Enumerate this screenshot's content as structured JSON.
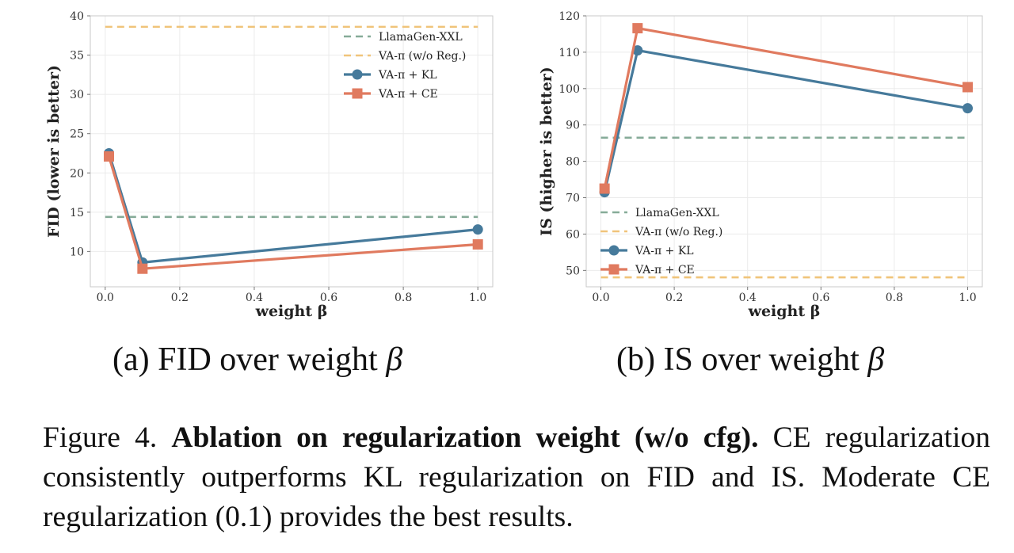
{
  "chart_data": [
    {
      "type": "line",
      "panel": "a",
      "xlabel": "weight β",
      "ylabel": "FID (lower is better)",
      "xlim": [
        -0.04,
        1.04
      ],
      "ylim": [
        5.5,
        40
      ],
      "xticks": [
        0.0,
        0.2,
        0.4,
        0.6,
        0.8,
        1.0
      ],
      "xtick_labels": [
        "0.0",
        "0.2",
        "0.4",
        "0.6",
        "0.8",
        "1.0"
      ],
      "yticks": [
        10,
        15,
        20,
        25,
        30,
        35,
        40
      ],
      "ytick_labels": [
        "10",
        "15",
        "20",
        "25",
        "30",
        "35",
        "40"
      ],
      "grid": true,
      "legend_position": "top-right",
      "x": [
        0.01,
        0.1,
        1.0
      ],
      "series": [
        {
          "name": "LlamaGen-XXL",
          "style": "dashed",
          "color": "#86ab98",
          "hline": 14.4
        },
        {
          "name": "VA-π (w/o Reg.)",
          "style": "dashed",
          "color": "#f0c47a",
          "hline": 38.6
        },
        {
          "name": "VA-π + KL",
          "style": "line",
          "marker": "circle",
          "color": "#467a9b",
          "values": [
            22.5,
            8.6,
            12.8
          ]
        },
        {
          "name": "VA-π + CE",
          "style": "line",
          "marker": "square",
          "color": "#e07a5f",
          "values": [
            22.1,
            7.8,
            10.9
          ]
        }
      ]
    },
    {
      "type": "line",
      "panel": "b",
      "xlabel": "weight β",
      "ylabel": "IS (higher is better)",
      "xlim": [
        -0.04,
        1.04
      ],
      "ylim": [
        45.5,
        120
      ],
      "xticks": [
        0.0,
        0.2,
        0.4,
        0.6,
        0.8,
        1.0
      ],
      "xtick_labels": [
        "0.0",
        "0.2",
        "0.4",
        "0.6",
        "0.8",
        "1.0"
      ],
      "yticks": [
        50,
        60,
        70,
        80,
        90,
        100,
        110,
        120
      ],
      "ytick_labels": [
        "50",
        "60",
        "70",
        "80",
        "90",
        "100",
        "110",
        "120"
      ],
      "grid": true,
      "legend_position": "bottom-left",
      "x": [
        0.01,
        0.1,
        1.0
      ],
      "series": [
        {
          "name": "LlamaGen-XXL",
          "style": "dashed",
          "color": "#86ab98",
          "hline": 86.5
        },
        {
          "name": "VA-π (w/o Reg.)",
          "style": "dashed",
          "color": "#f0c47a",
          "hline": 48.1
        },
        {
          "name": "VA-π + KL",
          "style": "line",
          "marker": "circle",
          "color": "#467a9b",
          "values": [
            71.5,
            110.5,
            94.6
          ]
        },
        {
          "name": "VA-π + CE",
          "style": "line",
          "marker": "square",
          "color": "#e07a5f",
          "values": [
            72.5,
            116.6,
            100.4
          ]
        }
      ]
    }
  ],
  "subcaptions": {
    "a_text": "(a) FID over weight ",
    "b_text": "(b) IS over weight ",
    "symbol": "β"
  },
  "caption": {
    "prefix": "Figure 4. ",
    "title": "Ablation on regularization weight (w/o cfg).",
    "body": " CE regularization consistently outperforms KL regularization on FID and IS. Moderate CE regularization (0.1) provides the best results."
  }
}
